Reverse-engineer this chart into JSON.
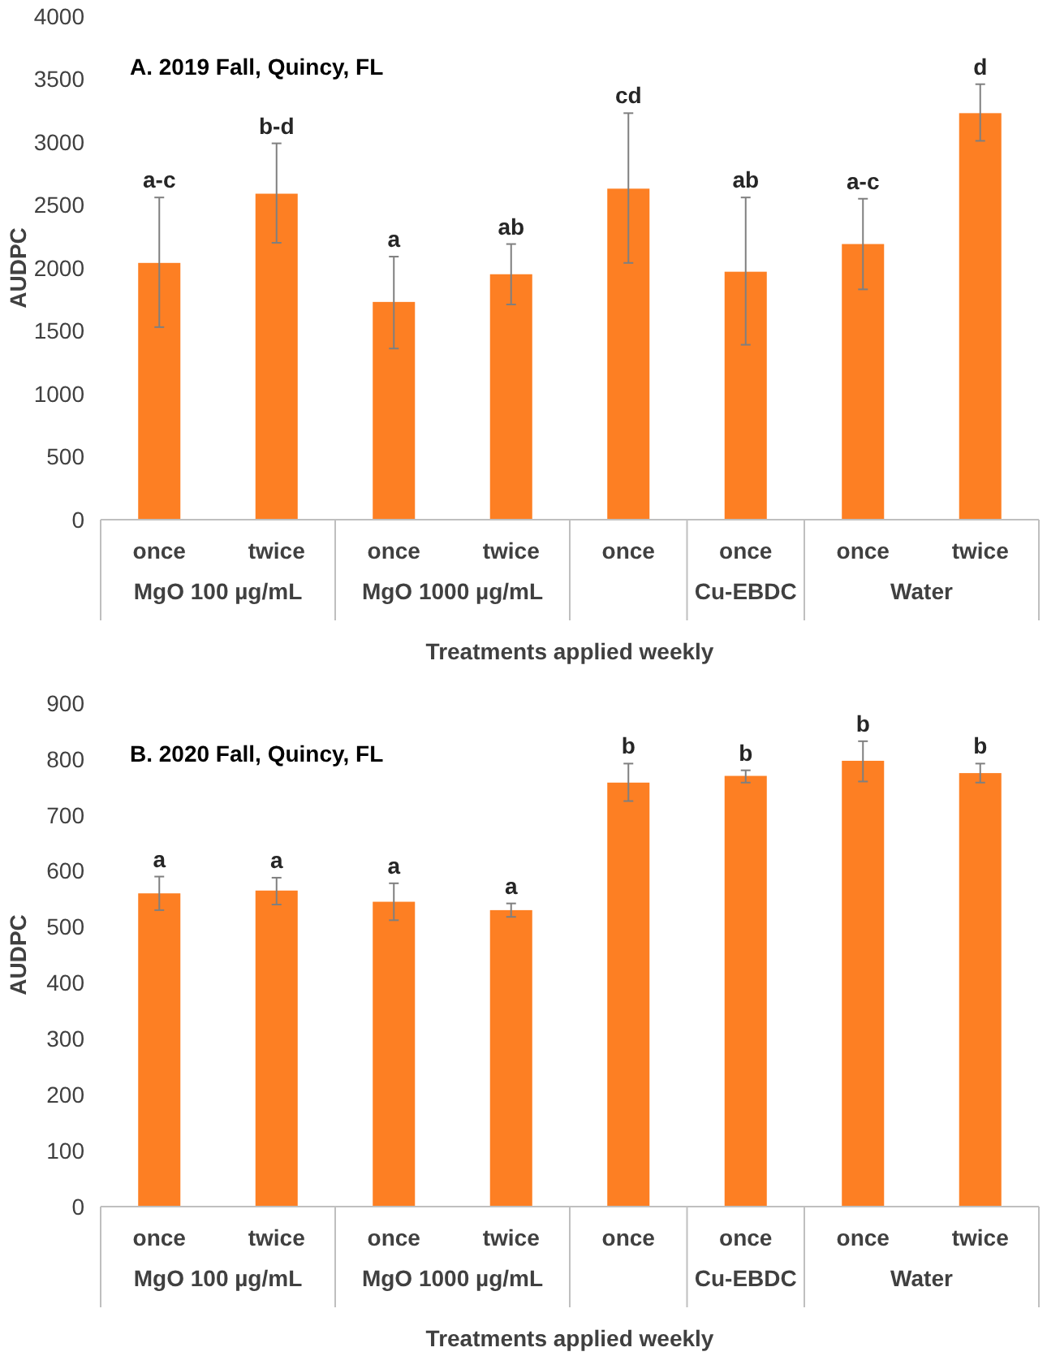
{
  "chart_data": [
    {
      "type": "bar",
      "title": "A. 2019 Fall, Quincy, FL",
      "xlabel": "Treatments applied weekly",
      "ylabel": "AUDPC",
      "categories": [
        "once",
        "twice",
        "once",
        "twice",
        "once",
        "once",
        "once",
        "twice"
      ],
      "values": [
        2040,
        2590,
        1730,
        1950,
        2630,
        1970,
        2190,
        3230
      ],
      "errors": [
        [
          1530,
          2560
        ],
        [
          2200,
          2990
        ],
        [
          1360,
          2090
        ],
        [
          1710,
          2190
        ],
        [
          2040,
          3230
        ],
        [
          1390,
          2560
        ],
        [
          1830,
          2550
        ],
        [
          3010,
          3460
        ]
      ],
      "color": "#fd7f23",
      "ylim": [
        0,
        4000
      ],
      "yticks": [
        0,
        500,
        1000,
        1500,
        2000,
        2500,
        3000,
        3500,
        4000
      ],
      "grid": false,
      "annotations": [
        "a-c",
        "b-d",
        "a",
        "ab",
        "cd",
        "ab",
        "a-c",
        "d",
        "MgO 100 µg/mL",
        "MgO 1000 µg/mL",
        "Cu-EBDC",
        "Water"
      ]
    },
    {
      "type": "bar",
      "title": "B. 2020 Fall, Quincy, FL",
      "xlabel": "Treatments applied weekly",
      "ylabel": "AUDPC",
      "categories": [
        "once",
        "twice",
        "once",
        "twice",
        "once",
        "once",
        "once",
        "twice"
      ],
      "values": [
        560,
        565,
        545,
        530,
        758,
        770,
        797,
        775
      ],
      "errors": [
        [
          530,
          590
        ],
        [
          540,
          588
        ],
        [
          512,
          578
        ],
        [
          518,
          542
        ],
        [
          725,
          792
        ],
        [
          758,
          780
        ],
        [
          760,
          832
        ],
        [
          758,
          792
        ]
      ],
      "color": "#fd7f23",
      "ylim": [
        0,
        900
      ],
      "yticks": [
        0,
        100,
        200,
        300,
        400,
        500,
        600,
        700,
        800,
        900
      ],
      "grid": false,
      "annotations": [
        "a",
        "a",
        "a",
        "a",
        "b",
        "b",
        "b",
        "b",
        "MgO 100 µg/mL",
        "MgO 1000 µg/mL",
        "Cu-EBDC",
        "Water"
      ]
    }
  ]
}
